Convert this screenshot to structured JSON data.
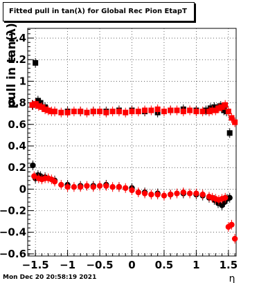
{
  "title": "Fitted pull in tan(λ) for Global Rec Pion EtapT",
  "timestamp": "Mon Dec 20 20:58:19 2021",
  "chart_data": {
    "type": "scatter",
    "title": "Fitted pull in tan(λ) for Global Rec Pion EtapT",
    "xlabel": "η",
    "ylabel": "pull in tan(λ)",
    "xlim": [
      -1.62,
      1.62
    ],
    "ylim": [
      -0.62,
      1.49
    ],
    "grid": true,
    "xticks": [
      -1.5,
      -1,
      -0.5,
      0,
      0.5,
      1,
      1.5
    ],
    "xtick_labels": [
      "−1.5",
      "−1",
      "−0.5",
      "0",
      "0.5",
      "1",
      "1.5"
    ],
    "yticks": [
      -0.6,
      -0.4,
      -0.2,
      0,
      0.2,
      0.4,
      0.6,
      0.8,
      1,
      1.2,
      1.4
    ],
    "ytick_labels": [
      "−0.6",
      "−0.4",
      "−0.2",
      "0",
      "0.2",
      "0.4",
      "0.6",
      "0.8",
      "1",
      "1.2",
      "1.4"
    ],
    "series": [
      {
        "color": "#000000",
        "marker": "square",
        "x": [
          -1.54,
          -1.5,
          -1.46,
          -1.42,
          -1.35,
          -1.2,
          -1.0,
          -0.8,
          -0.6,
          -0.4,
          -0.2,
          0.0,
          0.2,
          0.4,
          0.6,
          0.8,
          1.0,
          1.15,
          1.22,
          1.28,
          1.33,
          1.38,
          1.43,
          1.47,
          1.52
        ],
        "y": [
          0.78,
          1.17,
          0.82,
          0.8,
          0.76,
          0.72,
          0.72,
          0.72,
          0.72,
          0.72,
          0.73,
          0.73,
          0.72,
          0.71,
          0.73,
          0.74,
          0.73,
          0.73,
          0.75,
          0.76,
          0.75,
          0.77,
          0.73,
          0.72,
          0.52
        ]
      },
      {
        "color": "#000000",
        "marker": "circle",
        "x": [
          -1.54,
          -1.5,
          -1.46,
          -1.42,
          -1.35,
          -1.2,
          -1.0,
          -0.8,
          -0.6,
          -0.4,
          -0.2,
          0.0,
          0.2,
          0.4,
          0.6,
          0.8,
          1.0,
          1.1,
          1.2,
          1.28,
          1.34,
          1.4,
          1.44,
          1.48,
          1.52
        ],
        "y": [
          0.22,
          0.1,
          0.13,
          0.12,
          0.11,
          0.08,
          0.04,
          0.03,
          0.03,
          0.04,
          0.02,
          0.01,
          -0.03,
          -0.04,
          -0.05,
          -0.04,
          -0.05,
          -0.06,
          -0.08,
          -0.1,
          -0.13,
          -0.15,
          -0.12,
          -0.09,
          -0.08
        ]
      },
      {
        "color": "#ff0000",
        "marker": "square",
        "x": [
          -1.55,
          -1.5,
          -1.45,
          -1.4,
          -1.35,
          -1.3,
          -1.25,
          -1.2,
          -1.1,
          -1.0,
          -0.9,
          -0.8,
          -0.7,
          -0.6,
          -0.5,
          -0.4,
          -0.3,
          -0.2,
          -0.1,
          0.0,
          0.1,
          0.2,
          0.3,
          0.4,
          0.5,
          0.6,
          0.7,
          0.8,
          0.9,
          1.0,
          1.1,
          1.2,
          1.25,
          1.3,
          1.35,
          1.4,
          1.45,
          1.5,
          1.55,
          1.6
        ],
        "y": [
          0.78,
          0.79,
          0.77,
          0.76,
          0.74,
          0.73,
          0.72,
          0.72,
          0.71,
          0.71,
          0.72,
          0.72,
          0.71,
          0.72,
          0.72,
          0.71,
          0.72,
          0.72,
          0.71,
          0.72,
          0.72,
          0.73,
          0.73,
          0.74,
          0.72,
          0.73,
          0.73,
          0.72,
          0.73,
          0.72,
          0.72,
          0.72,
          0.73,
          0.73,
          0.75,
          0.76,
          0.78,
          0.72,
          0.66,
          0.62
        ]
      },
      {
        "color": "#ff0000",
        "marker": "circle",
        "x": [
          -1.52,
          -1.45,
          -1.4,
          -1.35,
          -1.3,
          -1.25,
          -1.2,
          -1.1,
          -1.0,
          -0.9,
          -0.8,
          -0.7,
          -0.6,
          -0.5,
          -0.4,
          -0.3,
          -0.2,
          -0.1,
          0.0,
          0.1,
          0.2,
          0.3,
          0.4,
          0.5,
          0.6,
          0.7,
          0.8,
          0.9,
          1.0,
          1.1,
          1.2,
          1.25,
          1.3,
          1.35,
          1.4,
          1.45,
          1.5,
          1.55,
          1.6
        ],
        "y": [
          0.12,
          0.1,
          0.09,
          0.1,
          0.1,
          0.09,
          0.07,
          0.04,
          0.02,
          0.02,
          0.02,
          0.03,
          0.02,
          0.03,
          0.03,
          0.02,
          0.02,
          0.01,
          -0.01,
          -0.03,
          -0.04,
          -0.05,
          -0.05,
          -0.06,
          -0.05,
          -0.04,
          -0.03,
          -0.04,
          -0.04,
          -0.05,
          -0.07,
          -0.08,
          -0.09,
          -0.1,
          -0.09,
          -0.08,
          -0.35,
          -0.33,
          -0.46
        ]
      }
    ]
  }
}
